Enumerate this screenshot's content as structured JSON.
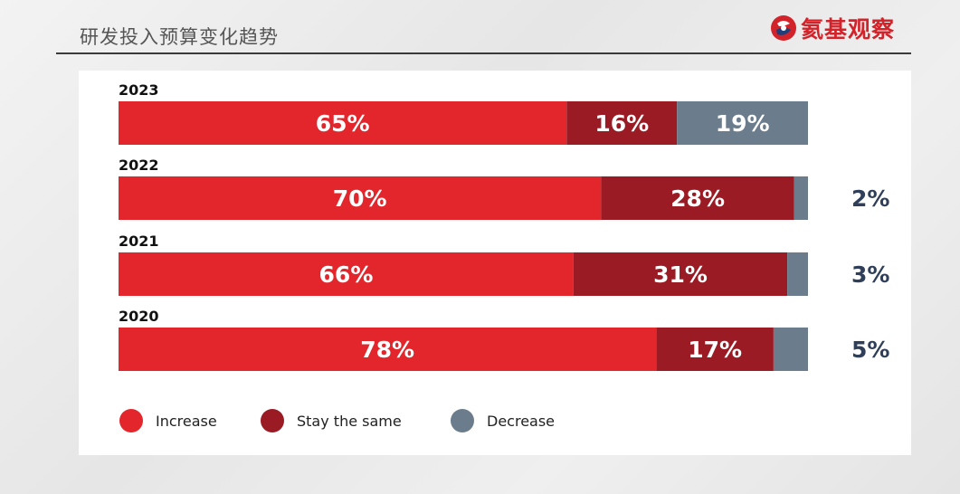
{
  "page": {
    "title": "研发投入预算变化趋势",
    "logo_text": "氦基观察"
  },
  "colors": {
    "increase": "#e3262b",
    "stay_same": "#9a1b24",
    "decrease": "#6b7c8d",
    "label_text": "#ffffff",
    "outside_label": "#2f3f5a"
  },
  "chart_data": {
    "type": "bar",
    "orientation": "horizontal",
    "stacked": true,
    "categories": [
      "2023",
      "2022",
      "2021",
      "2020"
    ],
    "series": [
      {
        "name": "Increase",
        "values": [
          65,
          70,
          66,
          78
        ],
        "labels": [
          "65%",
          "70%",
          "66%",
          "78%"
        ]
      },
      {
        "name": "Stay the same",
        "values": [
          16,
          28,
          31,
          17
        ],
        "labels": [
          "16%",
          "28%",
          "31%",
          "17%"
        ]
      },
      {
        "name": "Decrease",
        "values": [
          19,
          2,
          3,
          5
        ],
        "labels": [
          "19%",
          "2%",
          "3%",
          "5%"
        ]
      }
    ],
    "xlim": [
      0,
      100
    ],
    "grid": false,
    "legend_position": "bottom-left"
  }
}
